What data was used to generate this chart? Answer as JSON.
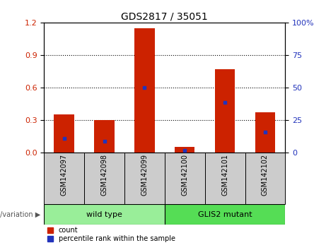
{
  "title": "GDS2817 / 35051",
  "categories": [
    "GSM142097",
    "GSM142098",
    "GSM142099",
    "GSM142100",
    "GSM142101",
    "GSM142102"
  ],
  "red_values": [
    0.35,
    0.3,
    1.15,
    0.05,
    0.77,
    0.37
  ],
  "blue_values": [
    0.13,
    0.1,
    0.6,
    0.02,
    0.46,
    0.19
  ],
  "ylim_left": [
    0,
    1.2
  ],
  "ylim_right": [
    0,
    100
  ],
  "yticks_left": [
    0,
    0.3,
    0.6,
    0.9,
    1.2
  ],
  "yticks_right": [
    0,
    25,
    50,
    75,
    100
  ],
  "bar_color": "#cc2200",
  "marker_color": "#2233bb",
  "groups": [
    {
      "label": "wild type",
      "indices": [
        0,
        1,
        2
      ],
      "color": "#99ee99"
    },
    {
      "label": "GLIS2 mutant",
      "indices": [
        3,
        4,
        5
      ],
      "color": "#55dd55"
    }
  ],
  "group_header": "genotype/variation",
  "legend_count_label": "count",
  "legend_pct_label": "percentile rank within the sample",
  "bar_width": 0.5,
  "title_fontsize": 10,
  "label_bg_color": "#cccccc",
  "label_fontsize": 7
}
